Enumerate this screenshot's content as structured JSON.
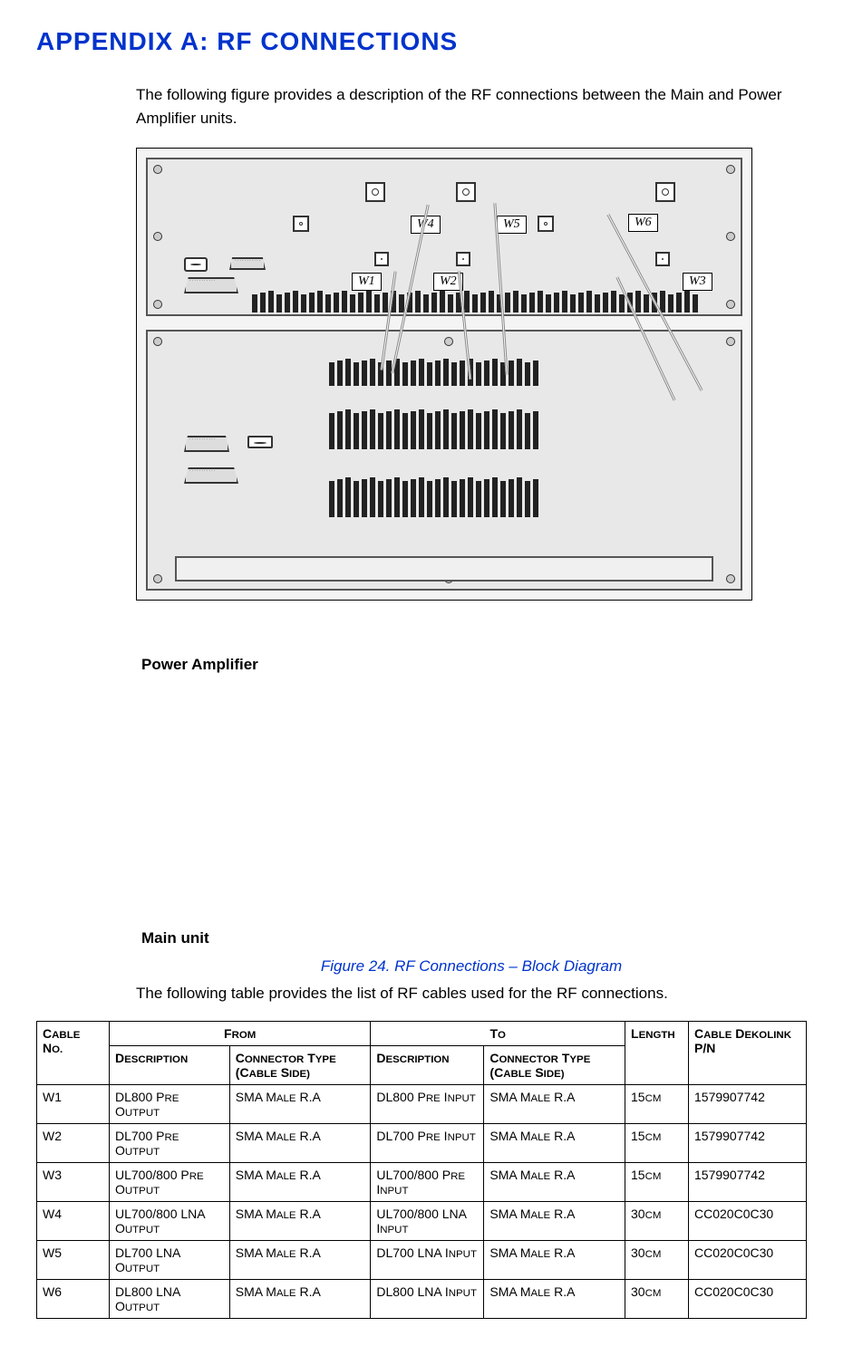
{
  "title": "APPENDIX A: RF CONNECTIONS",
  "intro": "The following figure provides a description of the RF connections between the Main and Power Amplifier units.",
  "figure": {
    "caption": "Figure 24. RF Connections – Block Diagram",
    "side_top": "Power Amplifier",
    "side_bot": "Main unit",
    "wlabels": [
      "W1",
      "W2",
      "W3",
      "W4",
      "W5",
      "W6"
    ]
  },
  "desc2": "The following table provides the list of RF cables used for the RF connections.",
  "table": {
    "headers": {
      "cable_no": "Cable No.",
      "from": "From",
      "to": "To",
      "length": "Length",
      "pn": "Cable Dekolink P/N",
      "desc": "Description",
      "conn": "Connector Type (cable side)"
    },
    "rows": [
      {
        "no": "W1",
        "f_desc": "DL800 Pre Output",
        "f_conn": "SMA Male R.A",
        "t_desc": "DL800 Pre Input",
        "t_conn": "SMA Male R.A",
        "len_v": "15",
        "len_u": "CM",
        "pn": "1579907742"
      },
      {
        "no": "W2",
        "f_desc": "DL700 Pre Output",
        "f_conn": "SMA Male R.A",
        "t_desc": "DL700 Pre Input",
        "t_conn": "SMA Male R.A",
        "len_v": "15",
        "len_u": "CM",
        "pn": "1579907742"
      },
      {
        "no": "W3",
        "f_desc": "UL700/800 Pre Output",
        "f_conn": "SMA Male R.A",
        "t_desc": "UL700/800 Pre Input",
        "t_conn": "SMA Male R.A",
        "len_v": "15",
        "len_u": "CM",
        "pn": "1579907742"
      },
      {
        "no": "W4",
        "f_desc": "UL700/800 LNA Output",
        "f_conn": "SMA Male R.A",
        "t_desc": "UL700/800 LNA Input",
        "t_conn": "SMA Male R.A",
        "len_v": "30",
        "len_u": "CM",
        "pn": "CC020C0C30"
      },
      {
        "no": "W5",
        "f_desc": "DL700 LNA Output",
        "f_conn": "SMA Male R.A",
        "t_desc": "DL700 LNA Input",
        "t_conn": "SMA Male R.A",
        "len_v": "30",
        "len_u": "CM",
        "pn": "CC020C0C30"
      },
      {
        "no": "W6",
        "f_desc": "DL800 LNA Output",
        "f_conn": "SMA Male R.A",
        "t_desc": "DL800 LNA Input",
        "t_conn": "SMA Male R.A",
        "len_v": "30",
        "len_u": "CM",
        "pn": "CC020C0C30"
      }
    ]
  }
}
